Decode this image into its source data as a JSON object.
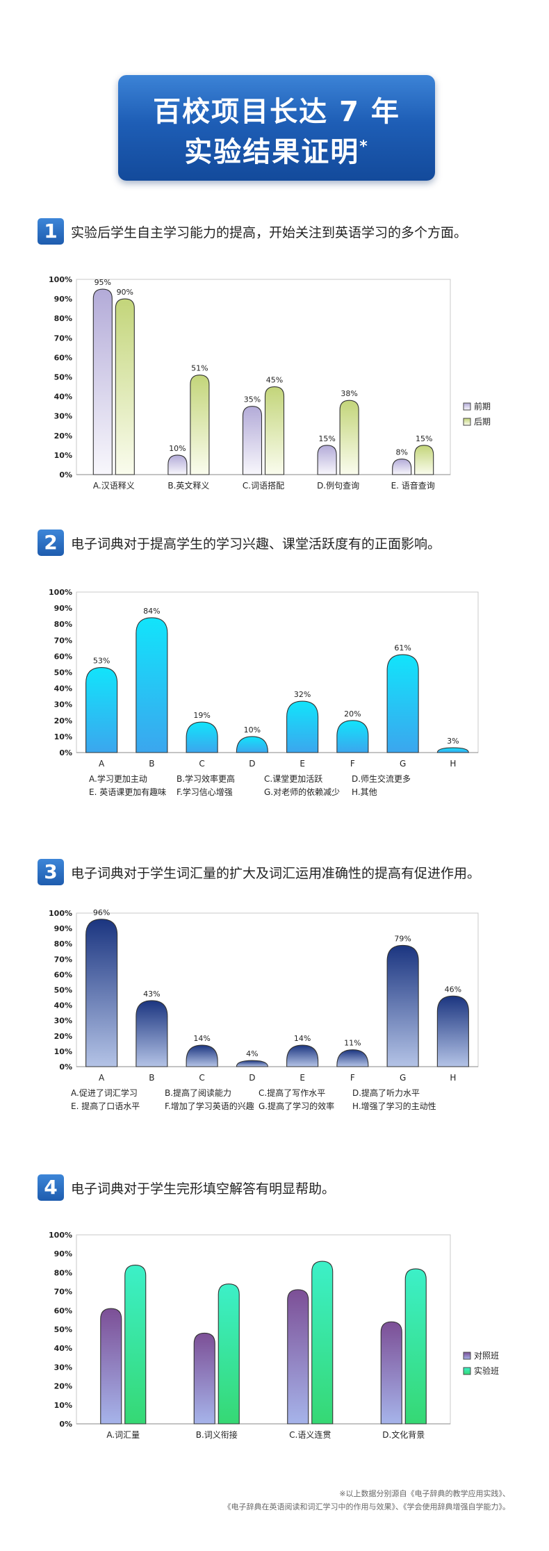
{
  "header": {
    "title_line1": "百校项目长达 7 年",
    "title_line2": "实验结果证明",
    "title_mark": "*"
  },
  "sections": [
    {
      "num": "1",
      "text": "实验后学生自主学习能力的提高，开始关注到英语学习的多个方面。"
    },
    {
      "num": "2",
      "text": "电子词典对于提高学生的学习兴趣、课堂活跃度有的正面影响。"
    },
    {
      "num": "3",
      "text": "电子词典对于学生词汇量的扩大及词汇运用准确性的提高有促进作用。"
    },
    {
      "num": "4",
      "text": "电子词典对于学生完形填空解答有明显帮助。"
    }
  ],
  "chart_data": [
    {
      "type": "bar",
      "categories": [
        "A.汉语释义",
        "B.英文释义",
        "C.词语搭配",
        "D.例句查询",
        "E. 语音查询"
      ],
      "series": [
        {
          "name": "前期",
          "values": [
            95,
            10,
            35,
            15,
            8
          ]
        },
        {
          "name": "后期",
          "values": [
            90,
            51,
            45,
            38,
            15
          ]
        }
      ],
      "ylim": [
        0,
        100
      ],
      "yticks": [
        "0%",
        "10%",
        "20%",
        "30%",
        "40%",
        "50%",
        "60%",
        "70%",
        "80%",
        "90%",
        "100%"
      ],
      "value_labels": [
        [
          "95%",
          "10%",
          "35%",
          "15%",
          "8%"
        ],
        [
          "90%",
          "51%",
          "45%",
          "38%",
          "15%"
        ]
      ],
      "legend": "right",
      "grid": false,
      "colors": [
        "#c5bfe0",
        "#d4e09a"
      ]
    },
    {
      "type": "bar",
      "categories": [
        "A",
        "B",
        "C",
        "D",
        "E",
        "F",
        "G",
        "H"
      ],
      "values": [
        53,
        84,
        19,
        10,
        32,
        20,
        61,
        3
      ],
      "value_labels": [
        "53%",
        "84%",
        "19%",
        "10%",
        "32%",
        "20%",
        "61%",
        "3%"
      ],
      "ylim": [
        0,
        100
      ],
      "yticks": [
        "0%",
        "10%",
        "20%",
        "30%",
        "40%",
        "50%",
        "60%",
        "70%",
        "80%",
        "90%",
        "100%"
      ],
      "key_rows": [
        [
          "A.学习更加主动",
          "B.学习效率更高",
          "C.课堂更加活跃",
          "D.师生交流更多"
        ],
        [
          "E. 英语课更加有趣味",
          "F.学习信心增强",
          "G.对老师的依赖减少",
          "H.其他"
        ]
      ],
      "grid": false,
      "colors": [
        "#1fd6f5"
      ]
    },
    {
      "type": "bar",
      "categories": [
        "A",
        "B",
        "C",
        "D",
        "E",
        "F",
        "G",
        "H"
      ],
      "values": [
        96,
        43,
        14,
        4,
        14,
        11,
        79,
        46
      ],
      "value_labels": [
        "96%",
        "43%",
        "14%",
        "4%",
        "14%",
        "11%",
        "79%",
        "46%"
      ],
      "ylim": [
        0,
        100
      ],
      "yticks": [
        "0%",
        "10%",
        "20%",
        "30%",
        "40%",
        "50%",
        "60%",
        "70%",
        "80%",
        "90%",
        "100%"
      ],
      "key_rows": [
        [
          "A.促进了词汇学习",
          "B.提高了阅读能力",
          "C.提高了写作水平",
          "D.提高了听力水平"
        ],
        [
          "E. 提高了口语水平",
          "F.增加了学习英语的兴趣",
          "G.提高了学习的效率",
          "H.增强了学习的主动性"
        ]
      ],
      "grid": false,
      "colors": [
        "#1e3f8c"
      ]
    },
    {
      "type": "bar",
      "categories": [
        "A.词汇量",
        "B.词义衔接",
        "C.语义连贯",
        "D.文化背景"
      ],
      "series": [
        {
          "name": "对照班",
          "values": [
            61,
            48,
            71,
            54
          ]
        },
        {
          "name": "实验班",
          "values": [
            84,
            74,
            86,
            82
          ]
        }
      ],
      "ylim": [
        0,
        100
      ],
      "yticks": [
        "0%",
        "10%",
        "20%",
        "30%",
        "40%",
        "50%",
        "60%",
        "70%",
        "80%",
        "90%",
        "100%"
      ],
      "legend": "right",
      "grid": false,
      "colors": [
        "#7d5aa0",
        "#30dfa3"
      ]
    }
  ],
  "footnote": {
    "line1": "※以上数据分别源自《电子辞典的教学应用实践》、",
    "line2": "《电子辞典在英语阅读和词汇学习中的作用与效果》、《学会使用辞典增强自学能力》。"
  }
}
